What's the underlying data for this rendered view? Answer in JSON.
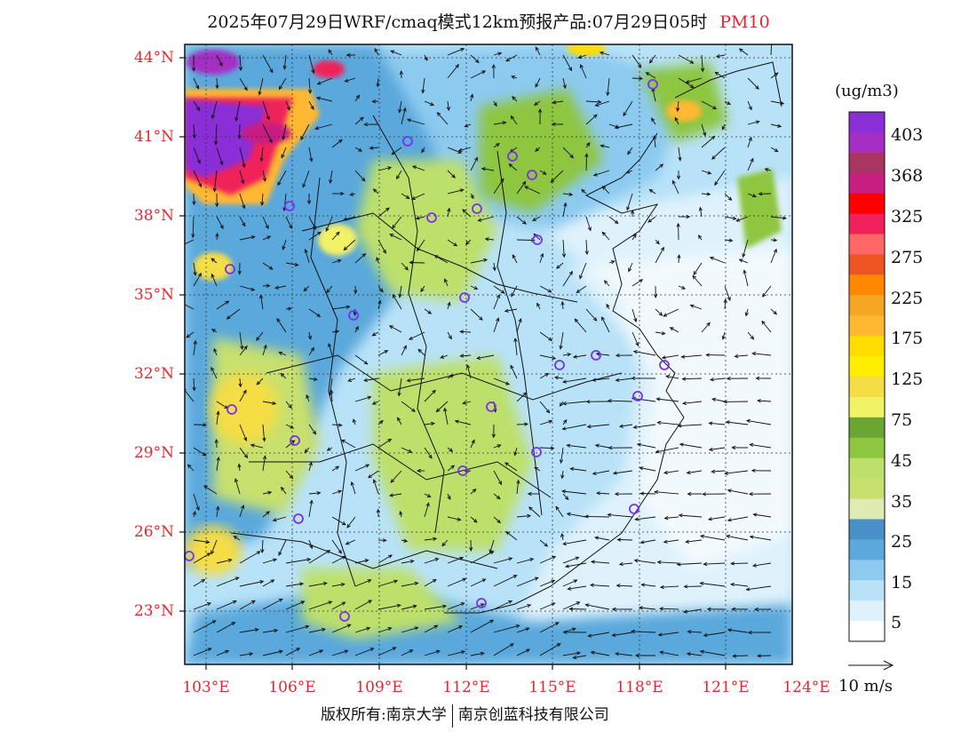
{
  "title": {
    "text": "2025年07月29日WRF/cmaq模式12km预报产品:07月29日05时",
    "pollutant": "PM10"
  },
  "map": {
    "lat_labels": [
      "44°N",
      "41°N",
      "38°N",
      "35°N",
      "32°N",
      "29°N",
      "26°N",
      "23°N"
    ],
    "lon_labels": [
      "103°E",
      "106°E",
      "109°E",
      "112°E",
      "115°E",
      "118°E",
      "121°E",
      "124°E"
    ]
  },
  "colorbar": {
    "unit": "(ug/m3)",
    "labels": [
      "403",
      "368",
      "325",
      "275",
      "225",
      "175",
      "125",
      "75",
      "45",
      "35",
      "25",
      "15",
      "5"
    ],
    "colors": [
      "#8a2fd8",
      "#a52fc4",
      "#aa3563",
      "#c81e82",
      "#ff0000",
      "#f0205a",
      "#ff6666",
      "#ee5522",
      "#ff8800",
      "#f5a623",
      "#ffb830",
      "#ffdd00",
      "#ffee00",
      "#f5dd44",
      "#f2f266",
      "#6aa632",
      "#8ec63f",
      "#bde06a",
      "#c8e06e",
      "#deecb4",
      "#4a90c8",
      "#5aa8dc",
      "#8ccaf0",
      "#b8e2f8",
      "#dff2fc",
      "#ffffff"
    ]
  },
  "wind_reference": {
    "label": "10 m/s"
  },
  "footer": {
    "copyright": "版权所有:南京大学",
    "company": "南京创蓝科技有限公司"
  }
}
